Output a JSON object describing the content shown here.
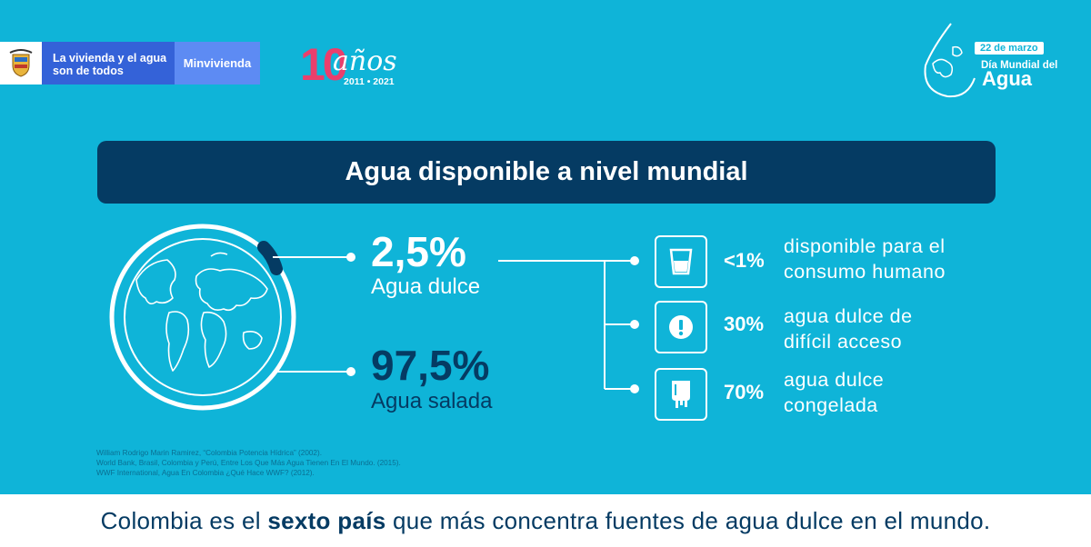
{
  "header": {
    "gov_slogan_line1": "La vivienda y el agua",
    "gov_slogan_line2": "son de todos",
    "ministry": "Minvivienda",
    "anniversary_number": "10",
    "anniversary_word": "años",
    "anniversary_years": "2011 • 2021",
    "water_day_date": "22 de marzo",
    "water_day_line1": "Día Mundial del",
    "water_day_line2": "Agua"
  },
  "banner": {
    "title": "Agua disponible a nivel mundial"
  },
  "left": {
    "fresh_pct": "2,5%",
    "fresh_label": "Agua dulce",
    "salt_pct": "97,5%",
    "salt_label": "Agua salada"
  },
  "stats": [
    {
      "icon": "glass-icon",
      "pct": "<1%",
      "line1": "disponible para el",
      "line2": "consumo humano"
    },
    {
      "icon": "exclamation-icon",
      "pct": "30%",
      "line1": "agua dulce de",
      "line2": "difícil acceso"
    },
    {
      "icon": "ice-icon",
      "pct": "70%",
      "line1": "agua dulce",
      "line2": "congelada"
    }
  ],
  "sources": [
    "William Rodrigo Marin Ramirez, “Colombia Potencia Hídrica” (2002).",
    "World Bank, Brasil, Colombia y Perú, Entre Los Que Más Agua Tienen En El Mundo. (2015).",
    "WWF International, Agua En Colombia ¿Qué Hace WWF? (2012)."
  ],
  "footer": {
    "pre": "Colombia es el ",
    "bold": "sexto país",
    "post": " que más concentra fuentes de agua dulce en el mundo."
  },
  "colors": {
    "background": "#0fb4d8",
    "navy": "#053b63",
    "accent_pink": "#ea3f6c",
    "gov_blue": "#3462d8"
  }
}
